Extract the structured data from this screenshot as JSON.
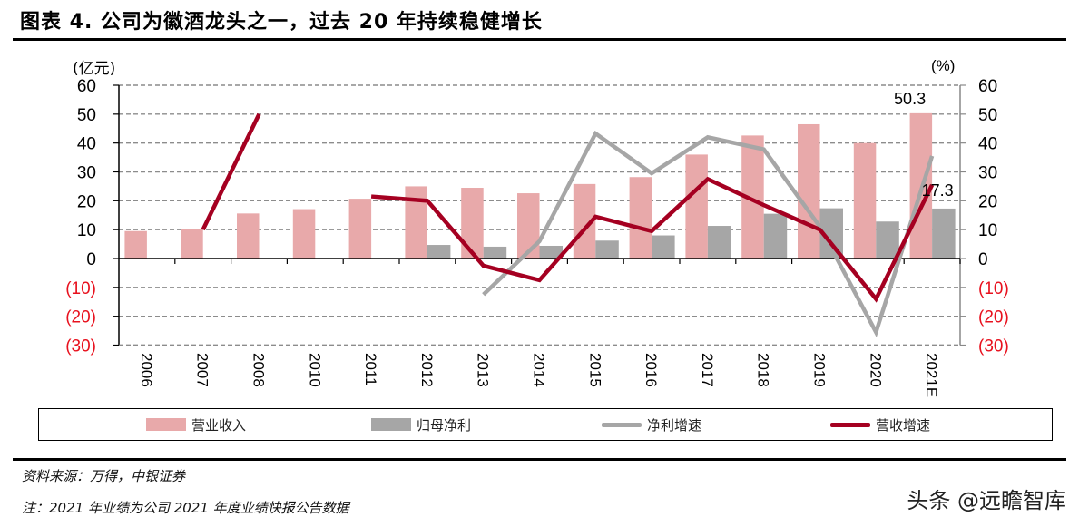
{
  "header": {
    "title": "图表 4. 公司为徽酒龙头之一，过去 20 年持续稳健增长"
  },
  "axes": {
    "left_unit": "(亿元)",
    "right_unit": "(%)",
    "ticks": [
      60,
      50,
      40,
      30,
      20,
      10,
      0,
      -10,
      -20,
      -30
    ],
    "tick_labels": [
      "60",
      "50",
      "40",
      "30",
      "20",
      "10",
      "0",
      "(10)",
      "(20)",
      "(30)"
    ],
    "negative_color": "#e8111e"
  },
  "legend": [
    {
      "label": "营业收入",
      "type": "bar",
      "color": "#e8a9aa"
    },
    {
      "label": "归母净利",
      "type": "bar",
      "color": "#a6a6a6"
    },
    {
      "label": "净利增速",
      "type": "line",
      "color": "#a6a6a6"
    },
    {
      "label": "营收增速",
      "type": "line",
      "color": "#a50021"
    }
  ],
  "annotations": [
    {
      "text": "50.3",
      "series": "营业收入",
      "category": "2021E"
    },
    {
      "text": "17.3",
      "series": "归母净利",
      "category": "2021E"
    }
  ],
  "footer": {
    "source": "资料来源：万得，中银证券",
    "note": "注：2021 年业绩为公司 2021 年度业绩快报公告数据",
    "watermark": "头条 @远瞻智库"
  },
  "chart_data": {
    "type": "bar",
    "title": "图表 4. 公司为徽酒龙头之一，过去 20 年持续稳健增长",
    "xlabel": "",
    "ylabel": "(亿元)",
    "y2label": "(%)",
    "ylim": [
      -30,
      60
    ],
    "y2lim": [
      -30,
      60
    ],
    "grid": true,
    "legend_position": "bottom",
    "categories": [
      "2006",
      "2007",
      "2008",
      "2010",
      "2011",
      "2012",
      "2013",
      "2014",
      "2015",
      "2016",
      "2017",
      "2018",
      "2019",
      "2020",
      "2021E"
    ],
    "series": [
      {
        "name": "营业收入",
        "type": "bar",
        "axis": "left",
        "color": "#e8a9aa",
        "values": [
          9.5,
          10.3,
          15.6,
          17.1,
          20.7,
          25.0,
          24.5,
          22.6,
          25.8,
          28.2,
          36.0,
          42.6,
          46.5,
          40.0,
          50.3
        ]
      },
      {
        "name": "归母净利",
        "type": "bar",
        "axis": "left",
        "color": "#a6a6a6",
        "values": [
          null,
          null,
          null,
          null,
          null,
          4.7,
          4.1,
          4.4,
          6.2,
          8.0,
          11.3,
          15.5,
          17.4,
          12.8,
          17.3
        ]
      },
      {
        "name": "净利增速",
        "type": "line",
        "axis": "right",
        "color": "#a6a6a6",
        "values": [
          null,
          null,
          null,
          null,
          null,
          null,
          -12.5,
          6.0,
          43.3,
          29.5,
          42.0,
          37.8,
          11.0,
          -25.5,
          35.5
        ]
      },
      {
        "name": "营收增速",
        "type": "line",
        "axis": "right",
        "color": "#a50021",
        "values": [
          null,
          10.0,
          50.0,
          null,
          21.5,
          20.0,
          -2.5,
          -7.5,
          14.5,
          9.5,
          27.5,
          18.5,
          10.0,
          -14.0,
          25.5
        ]
      }
    ]
  }
}
